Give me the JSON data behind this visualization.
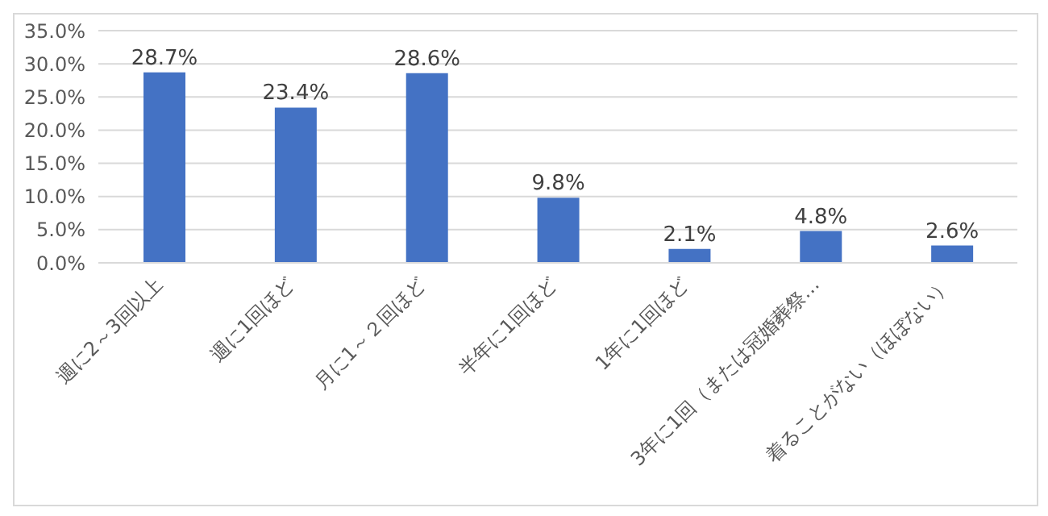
{
  "chart_data": {
    "type": "bar",
    "categories": [
      "週に2～3回以上",
      "週に1回ほど",
      "月に1～２回ほど",
      "半年に1回ほど",
      "1年に1回ほど",
      "3年に1回（または冠婚葬祭…",
      "着ることがない（ほぼない）"
    ],
    "values": [
      28.7,
      23.4,
      28.6,
      9.8,
      2.1,
      4.8,
      2.6
    ],
    "value_labels": [
      "28.7%",
      "23.4%",
      "28.6%",
      "9.8%",
      "2.1%",
      "4.8%",
      "2.6%"
    ],
    "color": "#4472c4",
    "ylim": [
      0,
      35
    ],
    "yticks": [
      {
        "value": 0,
        "label": "0.0%"
      },
      {
        "value": 5,
        "label": "5.0%"
      },
      {
        "value": 10,
        "label": "10.0%"
      },
      {
        "value": 15,
        "label": "15.0%"
      },
      {
        "value": 20,
        "label": "20.0%"
      },
      {
        "value": 25,
        "label": "25.0%"
      },
      {
        "value": 30,
        "label": "30.0%"
      },
      {
        "value": 35,
        "label": "35.0%"
      }
    ],
    "grid": "y"
  }
}
